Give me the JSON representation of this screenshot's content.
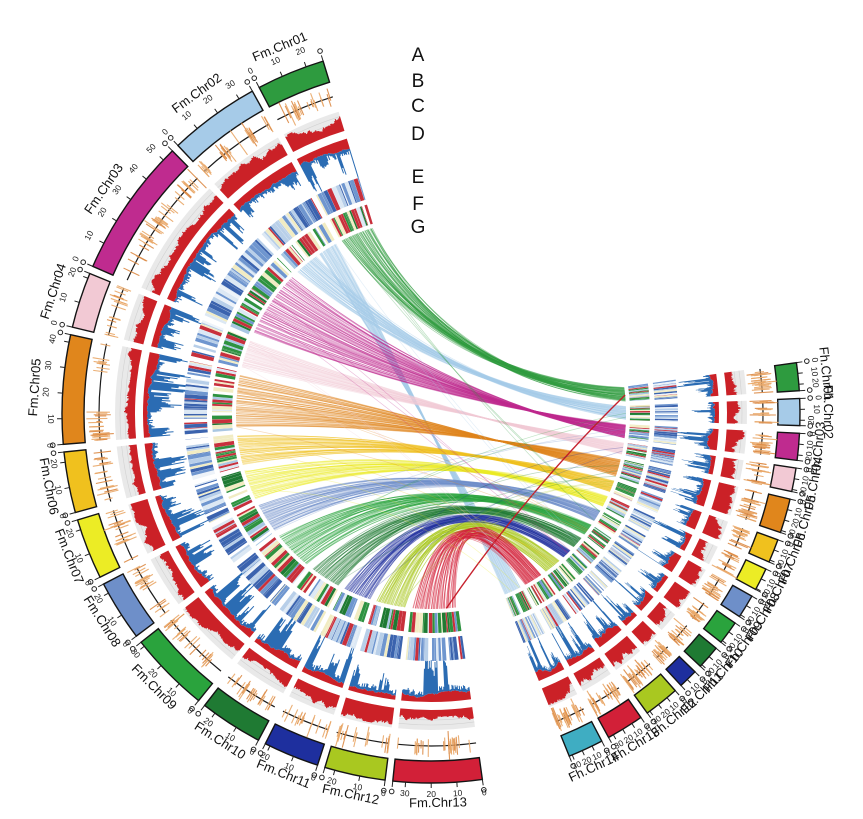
{
  "chart_data": {
    "type": "circos",
    "title": "",
    "description": "Circular synteny and genome-feature plot comparing chromosomes of genome Fm (left semicircle) with genome Fh (right semicircle). Tracks from outside in: A chromosome ideogram with Mb scale, B orange tick rug, C red density histogram on gray band, D red/blue stacked bidirectional histogram, E blue-family heatmap, F green/red heatmap, G syntenic link ribbons.",
    "scale_unit_mb": 10,
    "tracks": [
      {
        "letter": "A",
        "name": "chromosome-ideogram-with-scale"
      },
      {
        "letter": "B",
        "name": "orange-tick-rug"
      },
      {
        "letter": "C",
        "name": "red-density-histogram"
      },
      {
        "letter": "D",
        "name": "red-blue-bidirectional-histogram"
      },
      {
        "letter": "E",
        "name": "blue-heatmap"
      },
      {
        "letter": "F",
        "name": "green-red-heatmap"
      },
      {
        "letter": "G",
        "name": "synteny-ribbons"
      }
    ],
    "palette": {
      "histogram_red": "#cb2127",
      "histogram_blue": "#2b6cb3",
      "rug_orange": "#e9a768",
      "rug_orange_dark": "#db8a45",
      "track_bg_gray": "#e9e9e9",
      "grid_line": "#d2d2d2",
      "ideogram_stroke": "#141414",
      "emphasis_link_red": "#c41724",
      "heatmap_blue": [
        "#3b63ae",
        "#6f96cf",
        "#b8cfe9",
        "#dce8f4",
        "#f1ecc3",
        "#eef3f9",
        "#c8303c"
      ],
      "heatmap_green_red": [
        "#2e9240",
        "#1f7a33",
        "#c8303c",
        "#f1ecc3",
        "#a9c7e3",
        "#dce8f4",
        "#6f96cf"
      ]
    },
    "genomes": [
      {
        "name": "Fh",
        "position": "right-semicircle",
        "chromosomes": [
          {
            "label": "Fh.Chr01",
            "length_mb": 26,
            "color": "#2e9b3f"
          },
          {
            "label": "Fh.Chr02",
            "length_mb": 25,
            "color": "#a6cbe8"
          },
          {
            "label": "Fh.Chr03",
            "length_mb": 25,
            "color": "#bf2b8f"
          },
          {
            "label": "Fh.Chr04",
            "length_mb": 22,
            "color": "#f2c9d4"
          },
          {
            "label": "Fh.Chr05",
            "length_mb": 32,
            "color": "#e0861c"
          },
          {
            "label": "Fh.Chr06",
            "length_mb": 22,
            "color": "#f0c11e"
          },
          {
            "label": "Fh.Chr07",
            "length_mb": 21,
            "color": "#ecec25"
          },
          {
            "label": "Fh.Chr08",
            "length_mb": 22,
            "color": "#6e8fc9"
          },
          {
            "label": "Fh.Chr09",
            "length_mb": 22,
            "color": "#2aa33d"
          },
          {
            "label": "Fh.Chr10",
            "length_mb": 22,
            "color": "#1f7a33"
          },
          {
            "label": "Fh.Chr11",
            "length_mb": 18,
            "color": "#1e2f9e"
          },
          {
            "label": "Fh.Chr12",
            "length_mb": 33,
            "color": "#a9c820"
          },
          {
            "label": "Fh.Chr13",
            "length_mb": 35,
            "color": "#d22038"
          },
          {
            "label": "Fh.Chr14",
            "length_mb": 33,
            "color": "#3fadc2"
          }
        ]
      },
      {
        "name": "Fm",
        "position": "left-semicircle",
        "chromosomes": [
          {
            "label": "Fm.Chr01",
            "length_mb": 27,
            "color": "#2e9b3f"
          },
          {
            "label": "Fm.Chr02",
            "length_mb": 36,
            "color": "#a6cbe8"
          },
          {
            "label": "Fm.Chr03",
            "length_mb": 55,
            "color": "#bf2b8f"
          },
          {
            "label": "Fm.Chr04",
            "length_mb": 22,
            "color": "#f2c9d4"
          },
          {
            "label": "Fm.Chr05",
            "length_mb": 43,
            "color": "#e0861c"
          },
          {
            "label": "Fm.Chr06",
            "length_mb": 24,
            "color": "#f0c11e"
          },
          {
            "label": "Fm.Chr07",
            "length_mb": 24,
            "color": "#ecec25"
          },
          {
            "label": "Fm.Chr08",
            "length_mb": 24,
            "color": "#6e8fc9"
          },
          {
            "label": "Fm.Chr09",
            "length_mb": 32,
            "color": "#2aa33d"
          },
          {
            "label": "Fm.Chr10",
            "length_mb": 25,
            "color": "#1f7a33"
          },
          {
            "label": "Fm.Chr11",
            "length_mb": 22,
            "color": "#1e2f9e"
          },
          {
            "label": "Fm.Chr12",
            "length_mb": 24,
            "color": "#a9c820"
          },
          {
            "label": "Fm.Chr13",
            "length_mb": 35,
            "color": "#d22038"
          }
        ]
      }
    ],
    "links": [
      {
        "from": "Fm.Chr01",
        "to": "Fh.Chr01",
        "lines": 55
      },
      {
        "from": "Fm.Chr02",
        "to": "Fh.Chr02",
        "lines": 48,
        "from_range": [
          0.0,
          0.52
        ]
      },
      {
        "from": "Fm.Chr02",
        "to": "Fh.Chr14",
        "lines": 40,
        "from_range": [
          0.56,
          1.0
        ]
      },
      {
        "from": "Fm.Chr03",
        "to": "Fh.Chr03",
        "lines": 70
      },
      {
        "from": "Fm.Chr04",
        "to": "Fh.Chr04",
        "lines": 34
      },
      {
        "from": "Fm.Chr05",
        "to": "Fh.Chr05",
        "lines": 60
      },
      {
        "from": "Fm.Chr06",
        "to": "Fh.Chr06",
        "lines": 40
      },
      {
        "from": "Fm.Chr07",
        "to": "Fh.Chr07",
        "lines": 38
      },
      {
        "from": "Fm.Chr08",
        "to": "Fh.Chr08",
        "lines": 45
      },
      {
        "from": "Fm.Chr09",
        "to": "Fh.Chr09",
        "lines": 50
      },
      {
        "from": "Fm.Chr10",
        "to": "Fh.Chr10",
        "lines": 42
      },
      {
        "from": "Fm.Chr11",
        "to": "Fh.Chr11",
        "lines": 40
      },
      {
        "from": "Fm.Chr12",
        "to": "Fh.Chr12",
        "lines": 46
      },
      {
        "from": "Fm.Chr13",
        "to": "Fh.Chr13",
        "lines": 60
      }
    ],
    "stray_links": [
      {
        "from": "Fm.Chr13",
        "to": "Fh.Chr01",
        "emphasis": true
      },
      {
        "from": "Fm.Chr05",
        "to": "Fh.Chr09"
      },
      {
        "from": "Fm.Chr01",
        "to": "Fh.Chr08"
      },
      {
        "from": "Fm.Chr09",
        "to": "Fh.Chr02"
      },
      {
        "from": "Fm.Chr12",
        "to": "Fh.Chr06"
      },
      {
        "from": "Fm.Chr03",
        "to": "Fh.Chr11"
      },
      {
        "from": "Fm.Chr02",
        "to": "Fh.Chr10"
      },
      {
        "from": "Fm.Chr08",
        "to": "Fh.Chr03"
      },
      {
        "from": "Fm.Chr10",
        "to": "Fh.Chr05"
      },
      {
        "from": "Fm.Chr06",
        "to": "Fh.Chr12"
      },
      {
        "from": "Fm.Chr11",
        "to": "Fh.Chr04"
      },
      {
        "from": "Fm.Chr04",
        "to": "Fh.Chr13"
      },
      {
        "from": "Fm.Chr07",
        "to": "Fh.Chr14"
      }
    ],
    "layout": {
      "top_gap_deg": 16,
      "bottom_gap_deg": 14,
      "chr_gap_deg": 1.2,
      "top_gap_center_deg": 99,
      "grid": false,
      "legend": "none"
    }
  }
}
